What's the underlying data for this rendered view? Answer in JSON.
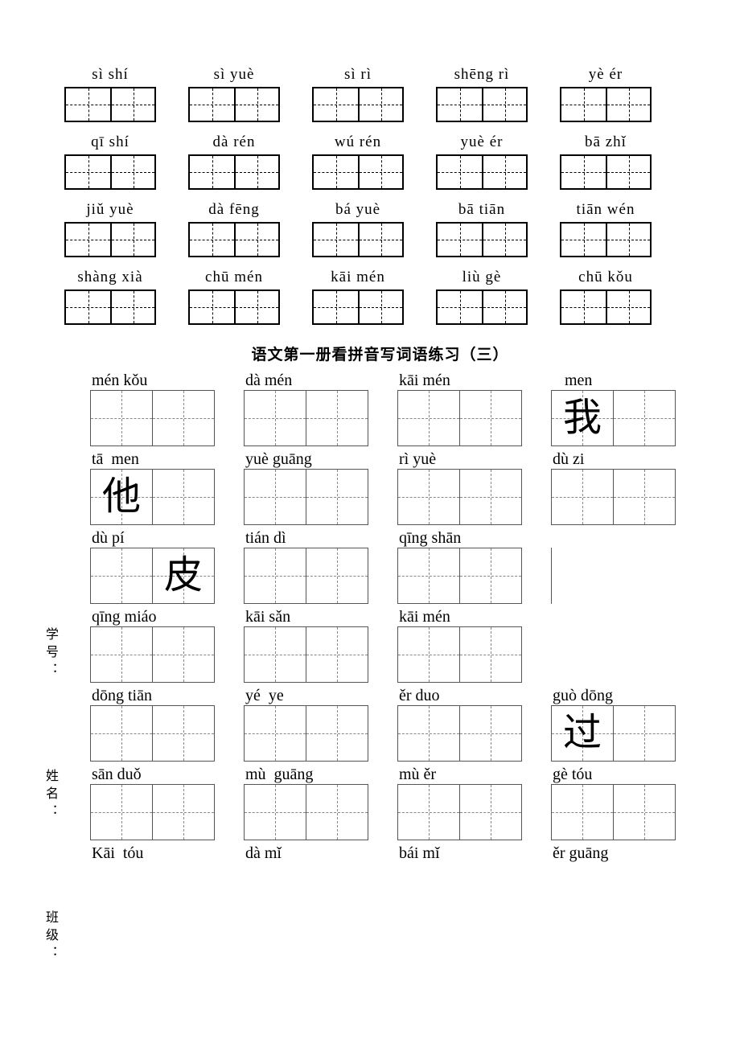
{
  "sectionA": {
    "rows": [
      [
        {
          "pinyin": "sì shí"
        },
        {
          "pinyin": "sì yuè"
        },
        {
          "pinyin": "sì rì"
        },
        {
          "pinyin": "shēng rì"
        },
        {
          "pinyin": "yè ér"
        }
      ],
      [
        {
          "pinyin": "qī shí"
        },
        {
          "pinyin": "dà rén"
        },
        {
          "pinyin": "wú rén"
        },
        {
          "pinyin": "yuè ér"
        },
        {
          "pinyin": "bā zhǐ"
        }
      ],
      [
        {
          "pinyin": "jiǔ yuè"
        },
        {
          "pinyin": "dà fēng"
        },
        {
          "pinyin": "bá yuè"
        },
        {
          "pinyin": "bā tiān"
        },
        {
          "pinyin": "tiān wén"
        }
      ],
      [
        {
          "pinyin": "shàng xià"
        },
        {
          "pinyin": "chū mén"
        },
        {
          "pinyin": "kāi mén"
        },
        {
          "pinyin": "liù gè"
        },
        {
          "pinyin": "chū kǒu"
        }
      ]
    ]
  },
  "sectionTitle": "语文第一册看拼音写词语练习（三）",
  "sectionB": {
    "rows": [
      [
        {
          "pinyin": "mén kǒu"
        },
        {
          "pinyin": "dà mén"
        },
        {
          "pinyin": "kāi mén"
        },
        {
          "pinyin": "   men",
          "glyphs": [
            "我",
            ""
          ]
        }
      ],
      [
        {
          "pinyin": "tā  men",
          "glyphs": [
            "他",
            ""
          ]
        },
        {
          "pinyin": "yuè guāng"
        },
        {
          "pinyin": "rì yuè"
        },
        {
          "pinyin": "dù zi"
        }
      ],
      [
        {
          "pinyin": "dù pí",
          "glyphs": [
            "",
            "皮"
          ]
        },
        {
          "pinyin": "tián dì"
        },
        {
          "pinyin": "qīng shān"
        },
        {
          "stubOnly": true
        }
      ],
      [
        {
          "pinyin": "qīng miáo"
        },
        {
          "pinyin": "kāi sǎn"
        },
        {
          "pinyin": "kāi mén"
        },
        {
          "blank": true
        }
      ],
      [
        {
          "pinyin": "dōng tiān"
        },
        {
          "pinyin": "yé  ye"
        },
        {
          "pinyin": "ěr duo"
        },
        {
          "pinyin": "guò dōng",
          "glyphs": [
            "过",
            ""
          ]
        }
      ],
      [
        {
          "pinyin": "sān duǒ"
        },
        {
          "pinyin": "mù  guāng"
        },
        {
          "pinyin": "mù ěr"
        },
        {
          "pinyin": "gè tóu"
        }
      ],
      [
        {
          "pinyin": "Kāi  tóu",
          "noBox": true
        },
        {
          "pinyin": "dà mǐ",
          "noBox": true
        },
        {
          "pinyin": "bái mǐ",
          "noBox": true
        },
        {
          "pinyin": "ěr guāng",
          "noBox": true
        }
      ]
    ]
  },
  "sideLabels": [
    "学号：",
    "姓名：",
    "班级："
  ],
  "style": {
    "page_bg": "#ffffff",
    "text_color": "#000000",
    "heavy_border_color": "#000000",
    "light_border_color": "#555555",
    "dash_color_heavy": "#000000",
    "dash_color_light": "#888888",
    "pinyin_fontsize_A": 19,
    "pinyin_fontsize_B": 20,
    "title_fontsize": 19,
    "glyph_fontsize": 48,
    "boxA_cell_w": 55,
    "boxA_h": 44,
    "boxB_w": 155,
    "boxB_h": 70
  }
}
